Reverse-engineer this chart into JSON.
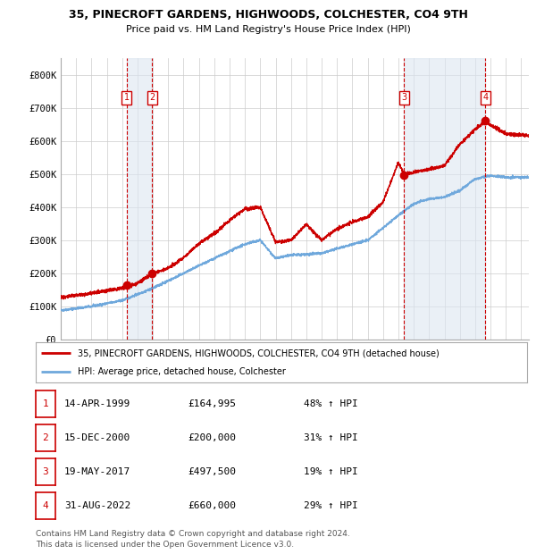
{
  "title1": "35, PINECROFT GARDENS, HIGHWOODS, COLCHESTER, CO4 9TH",
  "title2": "Price paid vs. HM Land Registry's House Price Index (HPI)",
  "legend_line1": "35, PINECROFT GARDENS, HIGHWOODS, COLCHESTER, CO4 9TH (detached house)",
  "legend_line2": "HPI: Average price, detached house, Colchester",
  "footer1": "Contains HM Land Registry data © Crown copyright and database right 2024.",
  "footer2": "This data is licensed under the Open Government Licence v3.0.",
  "transactions": [
    {
      "num": 1,
      "date": "14-APR-1999",
      "price": 164995,
      "pct": "48%",
      "year": 1999.29
    },
    {
      "num": 2,
      "date": "15-DEC-2000",
      "price": 200000,
      "pct": "31%",
      "year": 2000.96
    },
    {
      "num": 3,
      "date": "19-MAY-2017",
      "price": 497500,
      "pct": "19%",
      "year": 2017.38
    },
    {
      "num": 4,
      "date": "31-AUG-2022",
      "price": 660000,
      "pct": "29%",
      "year": 2022.66
    }
  ],
  "hpi_color": "#6fa8dc",
  "price_color": "#cc0000",
  "vline_color": "#cc0000",
  "shade_color": "#dce6f1",
  "grid_color": "#cccccc",
  "marker_color": "#cc0000",
  "ylim": [
    0,
    850000
  ],
  "xlim_start": 1995.0,
  "xlim_end": 2025.5,
  "yticks": [
    0,
    100000,
    200000,
    300000,
    400000,
    500000,
    600000,
    700000,
    800000
  ],
  "ytick_labels": [
    "£0",
    "£100K",
    "£200K",
    "£300K",
    "£400K",
    "£500K",
    "£600K",
    "£700K",
    "£800K"
  ],
  "background_color": "#ffffff",
  "hpi_key_years": [
    1995,
    1997,
    1999,
    2001,
    2003,
    2005,
    2007,
    2008,
    2009,
    2010,
    2012,
    2013,
    2015,
    2017,
    2018,
    2019,
    2020,
    2021,
    2022,
    2023,
    2024,
    2025.5
  ],
  "hpi_key_vals": [
    88000,
    100000,
    118000,
    155000,
    200000,
    245000,
    288000,
    300000,
    245000,
    255000,
    260000,
    275000,
    300000,
    375000,
    410000,
    425000,
    430000,
    450000,
    485000,
    495000,
    490000,
    490000
  ],
  "price_key_years": [
    1995,
    1997,
    1999,
    2000,
    2001,
    2002,
    2003,
    2004,
    2005,
    2006,
    2007,
    2008,
    2009,
    2010,
    2011,
    2012,
    2013,
    2014,
    2015,
    2016,
    2017,
    2017.4,
    2018,
    2019,
    2020,
    2021,
    2022,
    2022.7,
    2023,
    2024,
    2025,
    2025.5
  ],
  "price_key_vals": [
    128000,
    140000,
    155000,
    170000,
    200000,
    215000,
    248000,
    290000,
    320000,
    360000,
    395000,
    400000,
    295000,
    300000,
    348000,
    300000,
    335000,
    355000,
    370000,
    415000,
    535000,
    497500,
    505000,
    515000,
    525000,
    590000,
    635000,
    660000,
    648000,
    622000,
    618000,
    615000
  ]
}
